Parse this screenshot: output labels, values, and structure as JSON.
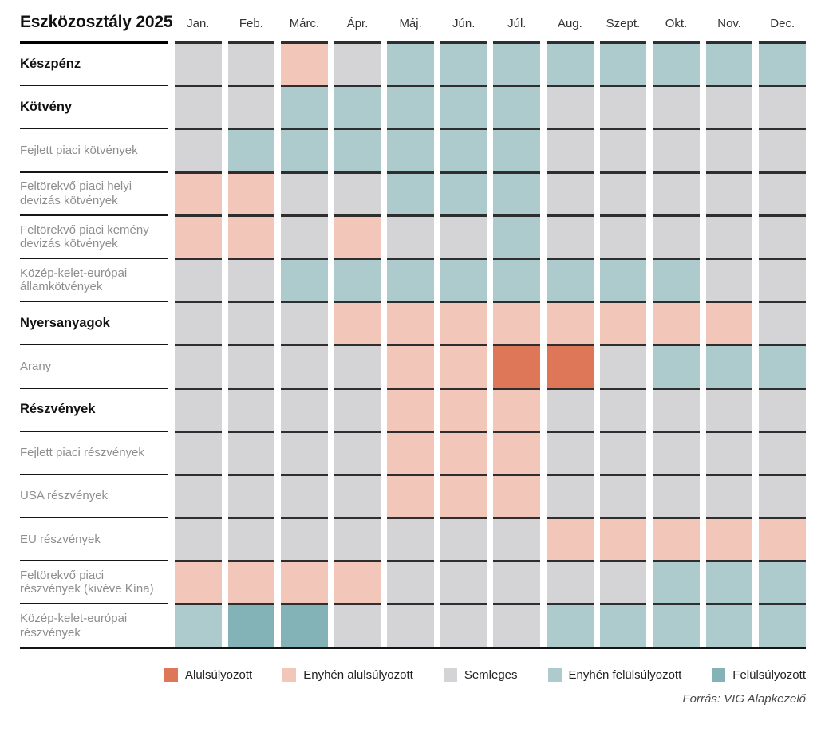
{
  "title": "Eszközosztály 2025",
  "months": [
    "Jan.",
    "Feb.",
    "Márc.",
    "Ápr.",
    "Máj.",
    "Jún.",
    "Júl.",
    "Aug.",
    "Szept.",
    "Okt.",
    "Nov.",
    "Dec."
  ],
  "legend": [
    {
      "key": "U",
      "label": "Alulsúlyozott",
      "color": "#dd7757"
    },
    {
      "key": "u",
      "label": "Enyhén alulsúlyozott",
      "color": "#f2c6b8"
    },
    {
      "key": "n",
      "label": "Semleges",
      "color": "#d4d4d6"
    },
    {
      "key": "o",
      "label": "Enyhén felülsúlyozott",
      "color": "#adcbcd"
    },
    {
      "key": "O",
      "label": "Felülsúlyozott",
      "color": "#83b3b6"
    }
  ],
  "source": "Forrás: VIG Alapkezelő",
  "chart_data": {
    "type": "heatmap",
    "title": "Eszközosztály 2025",
    "x": [
      "Jan.",
      "Feb.",
      "Márc.",
      "Ápr.",
      "Máj.",
      "Jún.",
      "Júl.",
      "Aug.",
      "Szept.",
      "Okt.",
      "Nov.",
      "Dec."
    ],
    "value_labels": {
      "U": "Alulsúlyozott",
      "u": "Enyhén alulsúlyozott",
      "n": "Semleges",
      "o": "Enyhén felülsúlyozott",
      "O": "Felülsúlyozott"
    },
    "rows": [
      {
        "label": "Készpénz",
        "bold": true,
        "values": [
          "n",
          "n",
          "u",
          "n",
          "o",
          "o",
          "o",
          "o",
          "o",
          "o",
          "o",
          "o"
        ]
      },
      {
        "label": "Kötvény",
        "bold": true,
        "values": [
          "n",
          "n",
          "o",
          "o",
          "o",
          "o",
          "o",
          "n",
          "n",
          "n",
          "n",
          "n"
        ]
      },
      {
        "label": "Fejlett piaci kötvények",
        "bold": false,
        "values": [
          "n",
          "o",
          "o",
          "o",
          "o",
          "o",
          "o",
          "n",
          "n",
          "n",
          "n",
          "n"
        ]
      },
      {
        "label": "Feltörekvő piaci helyi devizás kötvények",
        "bold": false,
        "values": [
          "u",
          "u",
          "n",
          "n",
          "o",
          "o",
          "o",
          "n",
          "n",
          "n",
          "n",
          "n"
        ]
      },
      {
        "label": "Feltörekvő piaci kemény devizás kötvények",
        "bold": false,
        "values": [
          "u",
          "u",
          "n",
          "u",
          "n",
          "n",
          "o",
          "n",
          "n",
          "n",
          "n",
          "n"
        ]
      },
      {
        "label": "Közép-kelet-európai államkötvények",
        "bold": false,
        "values": [
          "n",
          "n",
          "o",
          "o",
          "o",
          "o",
          "o",
          "o",
          "o",
          "o",
          "n",
          "n"
        ]
      },
      {
        "label": "Nyersanyagok",
        "bold": true,
        "values": [
          "n",
          "n",
          "n",
          "u",
          "u",
          "u",
          "u",
          "u",
          "u",
          "u",
          "u",
          "n"
        ]
      },
      {
        "label": "Arany",
        "bold": false,
        "values": [
          "n",
          "n",
          "n",
          "n",
          "u",
          "u",
          "U",
          "U",
          "n",
          "o",
          "o",
          "o"
        ]
      },
      {
        "label": "Részvények",
        "bold": true,
        "values": [
          "n",
          "n",
          "n",
          "n",
          "u",
          "u",
          "u",
          "n",
          "n",
          "n",
          "n",
          "n"
        ]
      },
      {
        "label": "Fejlett piaci részvények",
        "bold": false,
        "values": [
          "n",
          "n",
          "n",
          "n",
          "u",
          "u",
          "u",
          "n",
          "n",
          "n",
          "n",
          "n"
        ]
      },
      {
        "label": "USA részvények",
        "bold": false,
        "values": [
          "n",
          "n",
          "n",
          "n",
          "u",
          "u",
          "u",
          "n",
          "n",
          "n",
          "n",
          "n"
        ]
      },
      {
        "label": "EU részvények",
        "bold": false,
        "values": [
          "n",
          "n",
          "n",
          "n",
          "n",
          "n",
          "n",
          "u",
          "u",
          "u",
          "u",
          "u"
        ]
      },
      {
        "label": "Feltörekvő piaci részvények (kivéve Kína)",
        "bold": false,
        "values": [
          "u",
          "u",
          "u",
          "u",
          "n",
          "n",
          "n",
          "n",
          "n",
          "o",
          "o",
          "o"
        ]
      },
      {
        "label": "Közép-kelet-európai részvények",
        "bold": false,
        "values": [
          "o",
          "O",
          "O",
          "n",
          "n",
          "n",
          "n",
          "o",
          "o",
          "o",
          "o",
          "o"
        ]
      }
    ]
  }
}
